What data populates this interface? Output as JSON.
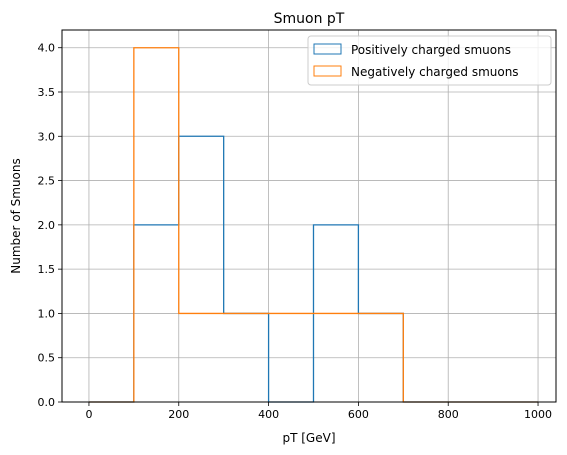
{
  "chart_data": {
    "type": "histogram",
    "title": "Smuon pT",
    "xlabel": "pT [GeV]",
    "ylabel": "Number of Smuons",
    "xlim": [
      -60,
      1040
    ],
    "ylim": [
      0,
      4.2
    ],
    "xticks": [
      0,
      200,
      400,
      600,
      800,
      1000
    ],
    "yticks": [
      0.0,
      0.5,
      1.0,
      1.5,
      2.0,
      2.5,
      3.0,
      3.5,
      4.0
    ],
    "xtick_labels": [
      "0",
      "200",
      "400",
      "600",
      "800",
      "1000"
    ],
    "ytick_labels": [
      "0.0",
      "0.5",
      "1.0",
      "1.5",
      "2.0",
      "2.5",
      "3.0",
      "3.5",
      "4.0"
    ],
    "grid": true,
    "legend_position": "top-right",
    "bin_edges": [
      0,
      100,
      200,
      300,
      400,
      500,
      600,
      700,
      800,
      900,
      1000
    ],
    "series": [
      {
        "name": "Positively charged smuons",
        "color": "#1f77b4",
        "values": [
          0,
          2,
          3,
          1,
          0,
          2,
          1,
          0,
          0,
          0
        ]
      },
      {
        "name": "Negatively charged smuons",
        "color": "#ff7f0e",
        "values": [
          0,
          4,
          1,
          1,
          1,
          1,
          1,
          0,
          0,
          0
        ]
      }
    ]
  }
}
